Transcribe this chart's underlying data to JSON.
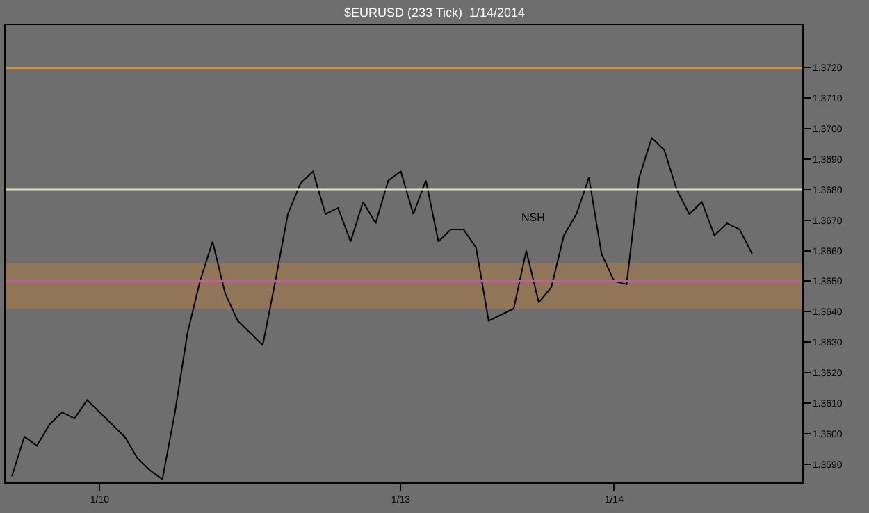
{
  "chart_data": {
    "type": "line",
    "title": "$EURUSD (233 Tick)  1/14/2014",
    "categories": [
      null,
      null,
      null,
      null,
      null,
      null,
      null,
      "1/10",
      null,
      null,
      null,
      null,
      null,
      null,
      null,
      null,
      null,
      null,
      null,
      null,
      null,
      null,
      null,
      null,
      null,
      null,
      null,
      null,
      null,
      null,
      null,
      "1/13",
      null,
      null,
      null,
      null,
      null,
      null,
      null,
      null,
      null,
      null,
      null,
      null,
      null,
      null,
      null,
      null,
      "1/14",
      null,
      null,
      null,
      null,
      null,
      null,
      null,
      null,
      null,
      null,
      null
    ],
    "series": [
      {
        "color": "#000000",
        "values": [
          1.3586,
          1.3599,
          1.3596,
          1.3603,
          1.3607,
          1.3605,
          1.3611,
          1.3607,
          1.3603,
          1.3599,
          1.3592,
          1.3588,
          1.3585,
          1.3607,
          1.3633,
          1.365,
          1.3663,
          1.3646,
          1.3637,
          1.3633,
          1.3629,
          1.365,
          1.3672,
          1.3682,
          1.3686,
          1.3672,
          1.3674,
          1.3663,
          1.3676,
          1.3669,
          1.3683,
          1.3686,
          1.3672,
          1.3683,
          1.3663,
          1.3667,
          1.3667,
          1.3661,
          1.3637,
          1.3639,
          1.3641,
          1.366,
          1.3643,
          1.3648,
          1.3665,
          1.3672,
          1.3684,
          1.3659,
          1.365,
          1.3649,
          1.3684,
          1.3697,
          1.3693,
          1.368,
          1.3672,
          1.3676,
          1.3665,
          1.3669,
          1.3667,
          1.3659
        ]
      }
    ],
    "ylim": [
      1.3584,
      1.3734
    ],
    "yticks": [
      {
        "value": 1.359,
        "label": "1.3590"
      },
      {
        "value": 1.36,
        "label": "1.3600"
      },
      {
        "value": 1.361,
        "label": "1.3610"
      },
      {
        "value": 1.362,
        "label": "1.3620"
      },
      {
        "value": 1.363,
        "label": "1.3630"
      },
      {
        "value": 1.364,
        "label": "1.3640"
      },
      {
        "value": 1.365,
        "label": "1.3650"
      },
      {
        "value": 1.366,
        "label": "1.3660"
      },
      {
        "value": 1.367,
        "label": "1.3670"
      },
      {
        "value": 1.368,
        "label": "1.3680"
      },
      {
        "value": 1.369,
        "label": "1.3690"
      },
      {
        "value": 1.37,
        "label": "1.3700"
      },
      {
        "value": 1.371,
        "label": "1.3710"
      },
      {
        "value": 1.372,
        "label": "1.3720"
      }
    ],
    "ref_lines": [
      {
        "axis": "y",
        "value": 1.372,
        "color": "#c8964b"
      },
      {
        "axis": "y",
        "value": 1.368,
        "color": "#e8e0c0"
      },
      {
        "axis": "y",
        "value": 1.365,
        "color": "#e040e0"
      }
    ],
    "bands": [
      {
        "axis": "y",
        "from": 1.3641,
        "to": 1.3656,
        "color": "#a07850"
      }
    ],
    "annotations": [
      "NSH"
    ],
    "grid": false,
    "legend": false,
    "marker": "none",
    "line_style": "solid"
  }
}
